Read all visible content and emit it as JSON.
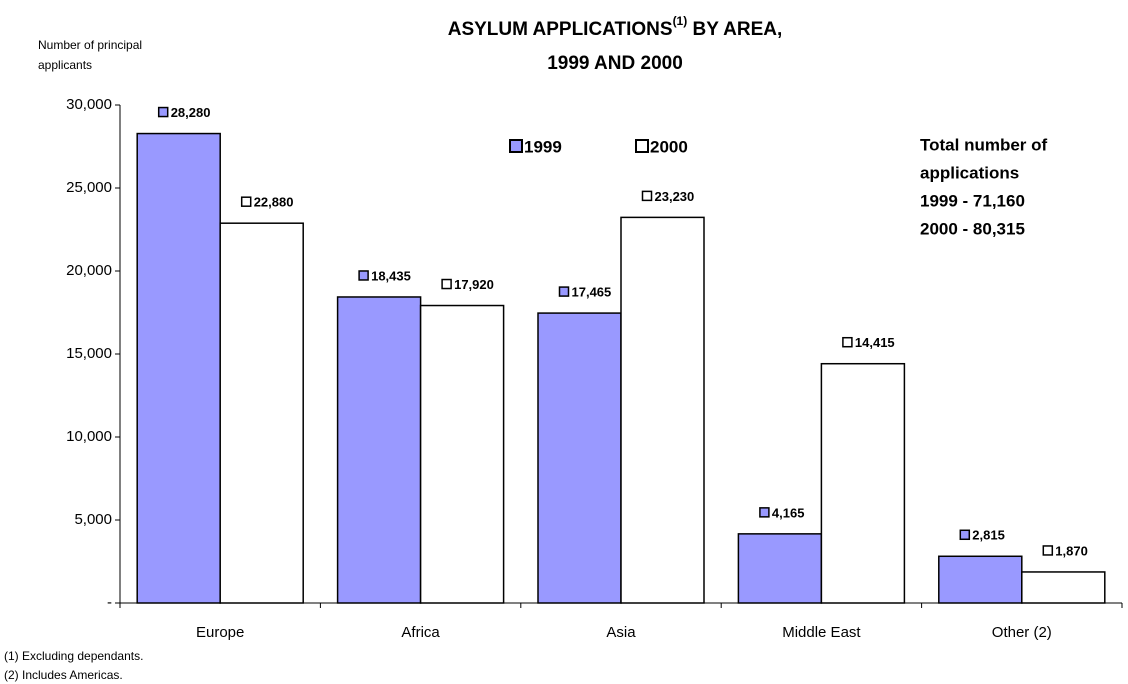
{
  "chart_data": {
    "type": "bar",
    "title": [
      "ASYLUM APPLICATIONS",
      "(1)",
      " BY AREA,",
      "1999 AND 2000"
    ],
    "y_axis_label": [
      "Number of principal",
      "applicants"
    ],
    "categories": [
      "Europe",
      "Africa",
      "Asia",
      "Middle East",
      "Other (2)"
    ],
    "series": [
      {
        "name": "1999",
        "color": "#9999ff",
        "values": [
          28280,
          18435,
          17465,
          4165,
          2815
        ],
        "value_labels": [
          "28,280",
          "18,435",
          "17,465",
          "4,165",
          "2,815"
        ]
      },
      {
        "name": "2000",
        "color": "#ffffff",
        "values": [
          22880,
          17920,
          23230,
          14415,
          1870
        ],
        "value_labels": [
          "22,880",
          "17,920",
          "23,230",
          "14,415",
          "1,870"
        ]
      }
    ],
    "ylim": [
      0,
      30000
    ],
    "yticks": [
      {
        "value": 0,
        "label": "-"
      },
      {
        "value": 5000,
        "label": "5,000"
      },
      {
        "value": 10000,
        "label": "10,000"
      },
      {
        "value": 15000,
        "label": "15,000"
      },
      {
        "value": 20000,
        "label": "20,000"
      },
      {
        "value": 25000,
        "label": "25,000"
      },
      {
        "value": 30000,
        "label": "30,000"
      }
    ],
    "annotation": [
      "Total number of",
      "applications",
      "1999 - 71,160",
      "2000 - 80,315"
    ],
    "footnotes": [
      "(1) Excluding dependants.",
      "(2) Includes Americas."
    ]
  }
}
